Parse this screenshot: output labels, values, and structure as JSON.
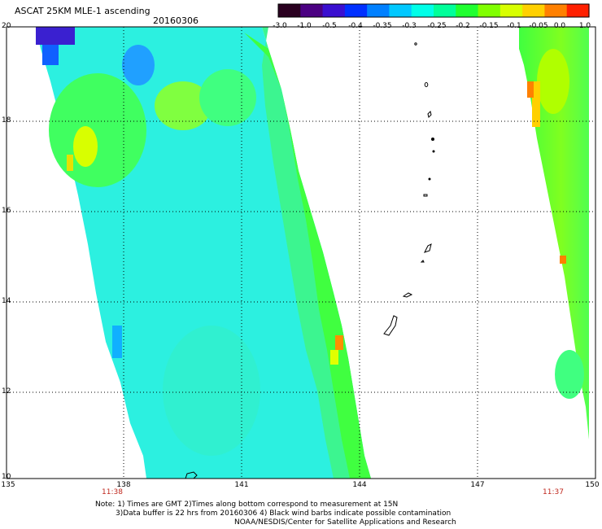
{
  "title": "ASCAT 25KM MLE-1 ascending",
  "date": "20160306",
  "colorbar": {
    "labels": [
      "-3.0",
      "-1.0",
      "-0.5",
      "-0.4",
      "-0.35",
      "-0.3",
      "-0.25",
      "-0.2",
      "-0.15",
      "-0.1",
      "-0.05",
      "0.0",
      "1.0"
    ],
    "colors": [
      "#2a0020",
      "#4b0082",
      "#3a0fd0",
      "#0030ff",
      "#0080ff",
      "#00c8ff",
      "#00ffe8",
      "#00ff9a",
      "#20ff30",
      "#80ff00",
      "#d8ff00",
      "#ffd000",
      "#ff8000",
      "#ff2000"
    ]
  },
  "axes": {
    "lat_labels": [
      "20",
      "18",
      "16",
      "14",
      "12",
      "10"
    ],
    "lon_labels": [
      "135",
      "138",
      "141",
      "144",
      "147",
      "150"
    ]
  },
  "pass_times": [
    "11:38",
    "11:37"
  ],
  "notes": [
    "Note: 1) Times are GMT 2)Times along bottom correspond to measurement at 15N",
    "3)Data buffer is 22 hrs from 20160306 4) Black wind barbs indicate possible contamination",
    "NOAA/NESDIS/Center for Satellite Applications and Research"
  ]
}
